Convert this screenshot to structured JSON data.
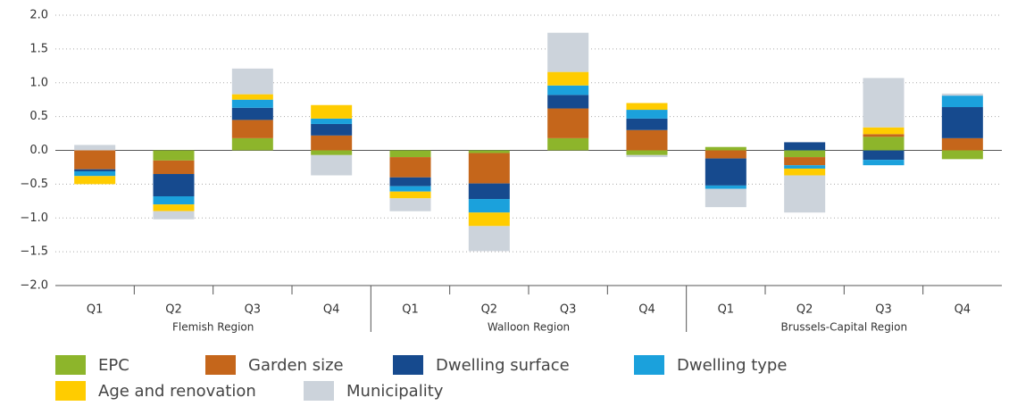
{
  "chart_data": {
    "type": "bar",
    "stacked": true,
    "categories": [
      "Q1",
      "Q2",
      "Q3",
      "Q4",
      "Q1",
      "Q2",
      "Q3",
      "Q4",
      "Q1",
      "Q2",
      "Q3",
      "Q4"
    ],
    "groups": [
      "Flemish Region",
      "Walloon Region",
      "Brussels-Capital Region"
    ],
    "series": [
      {
        "name": "EPC",
        "color": "#8db52b",
        "values": [
          0,
          -0.15,
          0.18,
          -0.07,
          -0.1,
          -0.04,
          0.18,
          -0.07,
          0.05,
          -0.1,
          0.2,
          -0.13
        ]
      },
      {
        "name": "Garden size",
        "color": "#c5661b",
        "values": [
          -0.28,
          -0.2,
          0.27,
          0.22,
          -0.3,
          -0.45,
          0.44,
          0.3,
          -0.12,
          -0.12,
          0.04,
          0.18
        ]
      },
      {
        "name": "Dwelling surface",
        "color": "#164a8e",
        "values": [
          -0.03,
          -0.33,
          0.18,
          0.17,
          -0.13,
          -0.23,
          0.2,
          0.17,
          -0.4,
          0.12,
          -0.14,
          0.46
        ]
      },
      {
        "name": "Dwelling type",
        "color": "#1ba1dc",
        "values": [
          -0.07,
          -0.12,
          0.12,
          0.08,
          -0.08,
          -0.2,
          0.14,
          0.13,
          -0.05,
          -0.05,
          -0.08,
          0.17
        ]
      },
      {
        "name": "Age and renovation",
        "color": "#ffcc00",
        "values": [
          -0.12,
          -0.1,
          0.08,
          0.2,
          -0.1,
          -0.2,
          0.2,
          0.1,
          0,
          -0.1,
          0.1,
          0
        ]
      },
      {
        "name": "Municipality",
        "color": "#ccd3db",
        "values": [
          0.08,
          -0.12,
          0.38,
          -0.3,
          -0.19,
          -0.37,
          0.58,
          -0.03,
          -0.27,
          -0.55,
          0.73,
          0.03
        ]
      }
    ],
    "ylim": [
      -2,
      2
    ],
    "yticks": [
      {
        "value": 2,
        "label": "2.0"
      },
      {
        "value": 1.5,
        "label": "1.5"
      },
      {
        "value": 1,
        "label": "1.0"
      },
      {
        "value": 0.5,
        "label": "0.5"
      },
      {
        "value": 0,
        "label": "0.0"
      },
      {
        "value": -0.5,
        "label": "−0.5"
      },
      {
        "value": -1,
        "label": "−1.0"
      },
      {
        "value": -1.5,
        "label": "−1.5"
      },
      {
        "value": -2,
        "label": "−2.0"
      }
    ],
    "grid": true
  }
}
